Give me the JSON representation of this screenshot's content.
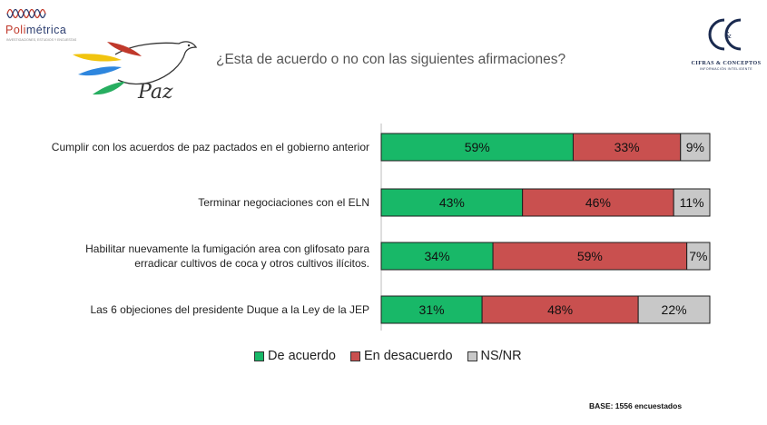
{
  "header": {
    "brand_part1": "Poli",
    "brand_part2": "métrica",
    "brand_tagline": "INVESTIGACIONES, ESTUDIOS Y ENCUESTAS",
    "dove_text": "Paz",
    "right_logo_monogram": "&",
    "right_logo_name": "CIFRAS & CONCEPTOS",
    "right_logo_sub": "INFORMACIÓN INTELIGENTE"
  },
  "colors": {
    "agree": "#18b868",
    "disagree": "#c9504f",
    "nsnr": "#c8c8c8"
  },
  "chart_data": {
    "type": "bar",
    "orientation": "horizontal",
    "stacked": true,
    "title": "¿Esta de acuerdo o no con las siguientes afirmaciones?",
    "categories": [
      [
        "Cumplir con los acuerdos de paz pactados en el gobierno anterior"
      ],
      [
        "Terminar negociaciones con el ELN"
      ],
      [
        "Habilitar nuevamente la fumigación area con glifosato para",
        "erradicar cultivos de coca y otros cultivos ilícitos."
      ],
      [
        "Las 6 objeciones del presidente Duque a la Ley de la JEP"
      ]
    ],
    "series": [
      {
        "name": "De acuerdo",
        "values": [
          59,
          43,
          34,
          31
        ],
        "labels": [
          "59%",
          "43%",
          "34%",
          "31%"
        ]
      },
      {
        "name": "En desacuerdo",
        "values": [
          33,
          46,
          59,
          48
        ],
        "labels": [
          "33%",
          "46%",
          "59%",
          "48%"
        ]
      },
      {
        "name": "NS/NR",
        "values": [
          9,
          11,
          7,
          22
        ],
        "labels": [
          "9%",
          "11%",
          "7%",
          "22%"
        ]
      }
    ],
    "legend_position": "bottom"
  },
  "footer": {
    "base": "BASE: 1556 encuestados"
  }
}
